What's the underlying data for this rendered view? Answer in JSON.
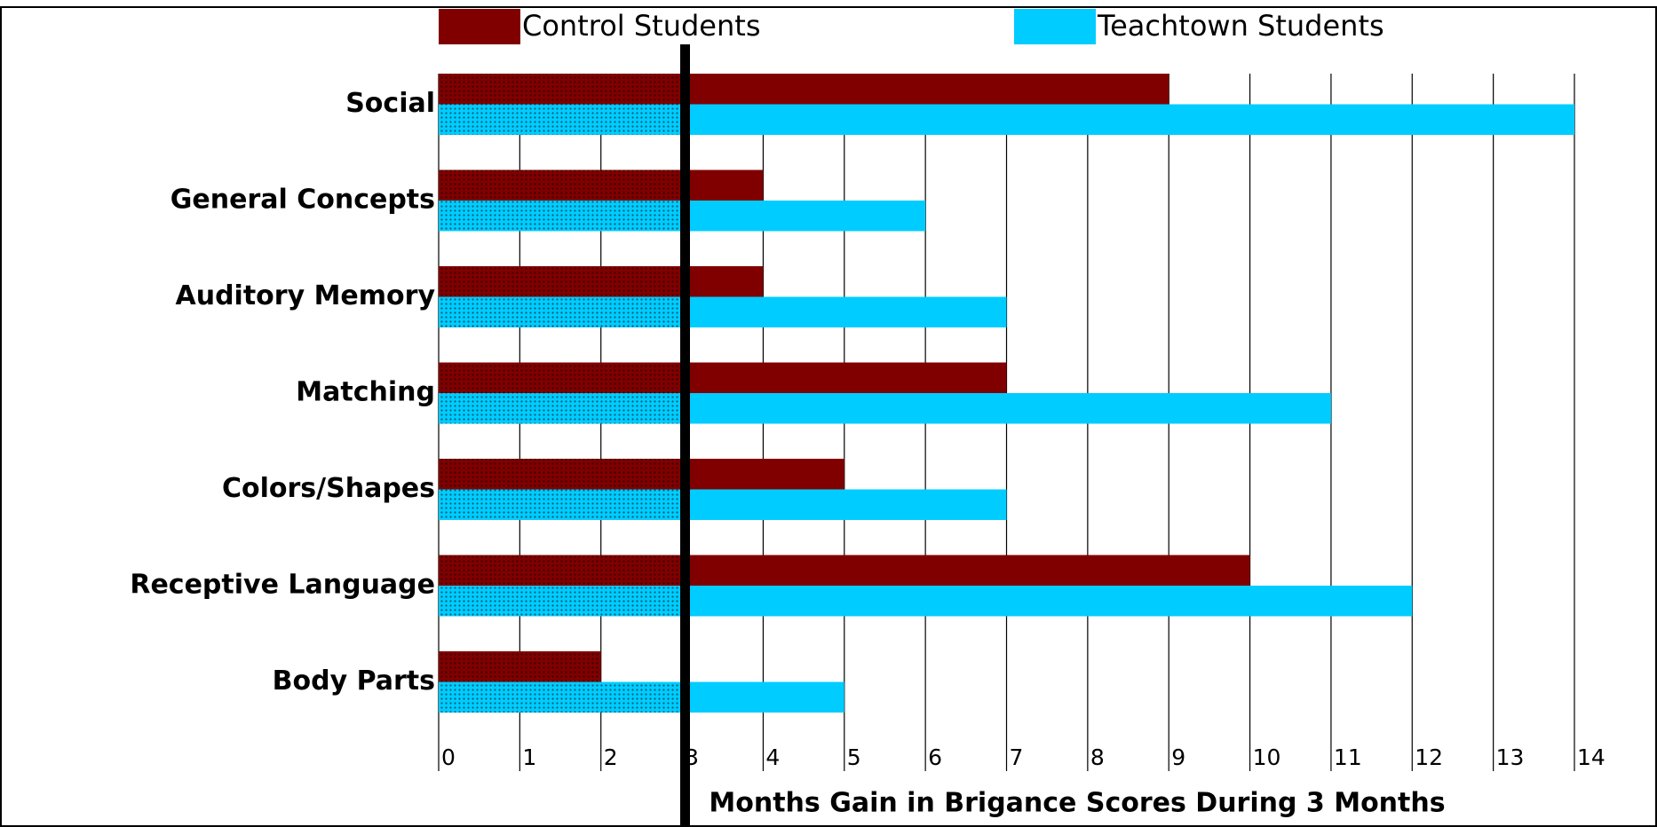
{
  "chart_data": {
    "type": "barh",
    "xlabel": "Months Gain in Brigance Scores During 3 Months",
    "categories": [
      "Social",
      "General Concepts",
      "Auditory Memory",
      "Matching",
      "Colors/Shapes",
      "Receptive Language",
      "Body Parts"
    ],
    "series": [
      {
        "name": "Control Students",
        "color": "#800000",
        "values": [
          9,
          4,
          4,
          7,
          5,
          10,
          2
        ]
      },
      {
        "name": "Teachtown Students",
        "color": "#00ccff",
        "values": [
          14,
          6,
          7,
          11,
          7,
          12,
          5
        ]
      }
    ],
    "xlim": [
      0,
      14
    ],
    "xticks": [
      0,
      1,
      2,
      3,
      4,
      5,
      6,
      7,
      8,
      9,
      10,
      11,
      12,
      13,
      14
    ],
    "grid": true
  }
}
